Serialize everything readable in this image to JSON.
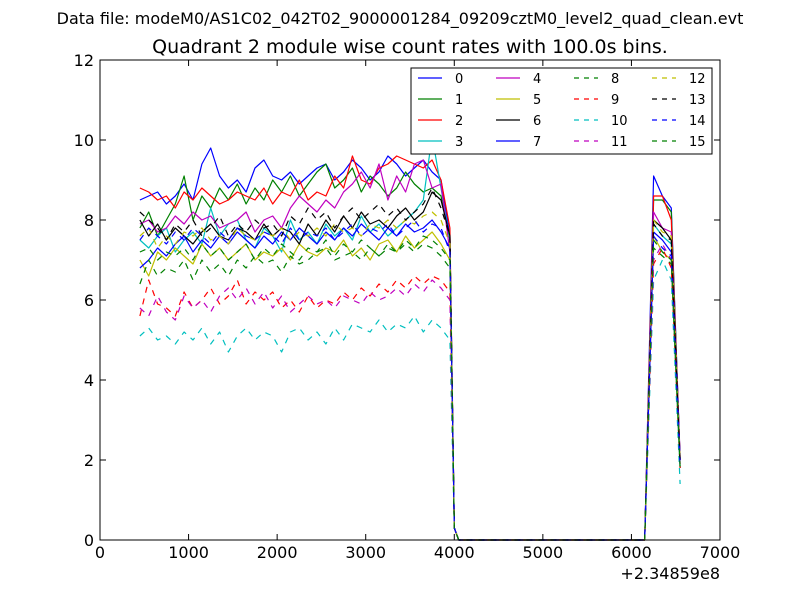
{
  "chart_data": {
    "type": "line",
    "suptitle": "Data file: modeM0/AS1C02_042T02_9000001284_09209cztM0_level2_quad_clean.evt",
    "title": "Quadrant 2 module wise count rates with 100.0s bins.",
    "xlabel": "",
    "ylabel": "",
    "x_offset_label": "+2.34859e8",
    "xlim": [
      0,
      7000
    ],
    "ylim": [
      0,
      12
    ],
    "x_ticks": [
      0,
      1000,
      2000,
      3000,
      4000,
      5000,
      6000,
      7000
    ],
    "y_ticks": [
      0,
      2,
      4,
      6,
      8,
      10,
      12
    ],
    "grid": false,
    "legend": {
      "placement": "top-right",
      "columns": 4
    },
    "x": [
      450,
      550,
      650,
      750,
      850,
      950,
      1050,
      1150,
      1250,
      1350,
      1450,
      1550,
      1650,
      1750,
      1850,
      1950,
      2050,
      2150,
      2250,
      2350,
      2450,
      2550,
      2650,
      2750,
      2850,
      2950,
      3050,
      3150,
      3250,
      3350,
      3450,
      3550,
      3650,
      3750,
      3850,
      3950,
      4000,
      4050,
      6150,
      6250,
      6350,
      6450,
      6550
    ],
    "series": [
      {
        "name": "0",
        "color": "#0000ff",
        "dash": "solid",
        "values": [
          8.5,
          8.6,
          8.7,
          8.4,
          8.6,
          8.9,
          8.5,
          9.4,
          9.8,
          9.1,
          8.8,
          9.0,
          8.7,
          9.3,
          9.5,
          9.1,
          9.0,
          9.2,
          8.9,
          9.1,
          9.3,
          9.4,
          9.0,
          9.2,
          9.5,
          9.3,
          9.0,
          9.2,
          9.6,
          9.4,
          9.1,
          9.3,
          9.5,
          9.2,
          9.0,
          7.6,
          0.3,
          0.0,
          0.0,
          9.1,
          8.6,
          8.3,
          2.0
        ]
      },
      {
        "name": "1",
        "color": "#008000",
        "dash": "solid",
        "values": [
          7.8,
          8.2,
          7.6,
          8.0,
          8.4,
          9.1,
          8.0,
          8.6,
          8.3,
          8.8,
          8.5,
          8.9,
          8.4,
          8.8,
          8.5,
          9.0,
          8.7,
          9.1,
          8.6,
          8.9,
          9.2,
          9.4,
          8.8,
          9.0,
          9.3,
          8.7,
          9.1,
          8.9,
          8.6,
          8.8,
          9.2,
          8.9,
          8.7,
          8.8,
          8.6,
          7.5,
          0.3,
          0.0,
          0.0,
          8.5,
          8.5,
          8.2,
          2.0
        ]
      },
      {
        "name": "2",
        "color": "#ff0000",
        "dash": "solid",
        "values": [
          8.8,
          8.7,
          8.5,
          8.6,
          8.3,
          8.7,
          8.5,
          8.8,
          8.6,
          8.4,
          8.5,
          8.7,
          8.6,
          8.5,
          8.8,
          8.4,
          8.7,
          8.6,
          9.0,
          8.5,
          8.7,
          8.6,
          9.1,
          8.8,
          9.6,
          9.0,
          8.9,
          9.3,
          9.4,
          9.6,
          9.5,
          9.4,
          9.3,
          9.5,
          9.0,
          7.8,
          0.3,
          0.0,
          0.0,
          8.6,
          8.6,
          8.0,
          2.0
        ]
      },
      {
        "name": "3",
        "color": "#00bfbf",
        "dash": "solid",
        "values": [
          7.5,
          7.3,
          7.6,
          7.8,
          7.2,
          7.5,
          7.7,
          7.4,
          8.3,
          7.6,
          7.9,
          8.0,
          7.5,
          7.3,
          7.8,
          7.6,
          7.2,
          8.0,
          7.5,
          7.7,
          7.4,
          7.9,
          7.6,
          7.8,
          7.5,
          8.1,
          7.7,
          7.9,
          7.6,
          7.8,
          8.0,
          8.2,
          8.5,
          10.1,
          8.8,
          7.5,
          0.3,
          0.0,
          0.0,
          7.9,
          7.6,
          7.4,
          1.8
        ]
      },
      {
        "name": "4",
        "color": "#bf00bf",
        "dash": "solid",
        "values": [
          7.9,
          8.0,
          7.7,
          7.8,
          8.1,
          7.9,
          8.2,
          8.0,
          8.1,
          7.8,
          7.9,
          8.0,
          8.2,
          7.7,
          8.0,
          8.1,
          7.8,
          8.3,
          8.6,
          8.4,
          8.2,
          8.5,
          8.3,
          8.7,
          8.9,
          9.2,
          8.8,
          9.4,
          8.5,
          9.1,
          8.7,
          9.4,
          9.5,
          8.8,
          8.9,
          7.2,
          0.3,
          0.0,
          0.0,
          8.2,
          7.8,
          7.7,
          2.1
        ]
      },
      {
        "name": "5",
        "color": "#bfbf00",
        "dash": "solid",
        "values": [
          7.0,
          6.6,
          7.2,
          7.0,
          7.3,
          7.1,
          6.9,
          7.4,
          7.1,
          7.3,
          7.0,
          7.2,
          7.4,
          7.0,
          7.2,
          7.1,
          7.3,
          7.0,
          7.4,
          7.2,
          7.1,
          7.3,
          7.2,
          7.5,
          7.1,
          7.3,
          7.0,
          7.4,
          7.5,
          7.2,
          7.6,
          7.3,
          7.5,
          7.7,
          7.4,
          7.0,
          0.3,
          0.0,
          0.0,
          7.6,
          7.2,
          7.0,
          1.9
        ]
      },
      {
        "name": "6",
        "color": "#000000",
        "dash": "solid",
        "values": [
          8.0,
          7.6,
          7.9,
          7.5,
          7.8,
          7.6,
          7.4,
          7.7,
          7.9,
          7.6,
          7.5,
          7.8,
          7.7,
          7.5,
          7.9,
          7.6,
          7.8,
          7.7,
          7.4,
          7.9,
          7.6,
          8.0,
          7.7,
          8.1,
          7.8,
          8.2,
          7.9,
          8.0,
          7.8,
          8.1,
          8.3,
          8.0,
          8.2,
          8.7,
          8.5,
          7.6,
          0.3,
          0.0,
          0.0,
          8.0,
          7.8,
          7.5,
          2.0
        ]
      },
      {
        "name": "7",
        "color": "#0000ff",
        "dash": "solid",
        "values": [
          6.8,
          7.0,
          7.3,
          7.1,
          7.4,
          7.6,
          7.2,
          7.5,
          7.3,
          7.6,
          7.4,
          7.7,
          7.5,
          7.3,
          7.6,
          7.4,
          7.7,
          7.5,
          7.8,
          7.6,
          7.4,
          7.7,
          7.5,
          7.8,
          7.6,
          7.9,
          7.7,
          7.5,
          7.8,
          7.6,
          7.9,
          7.7,
          7.8,
          8.0,
          7.7,
          7.3,
          0.3,
          0.0,
          0.0,
          7.7,
          7.5,
          7.2,
          2.0
        ]
      },
      {
        "name": "8",
        "color": "#008000",
        "dash": "dashed",
        "values": [
          6.4,
          7.0,
          6.6,
          6.8,
          6.7,
          7.0,
          6.5,
          7.0,
          6.7,
          6.9,
          6.6,
          7.0,
          6.8,
          7.1,
          6.9,
          7.0,
          6.7,
          7.1,
          6.9,
          7.0,
          7.2,
          7.3,
          7.0,
          7.1,
          7.2,
          7.0,
          7.3,
          7.1,
          7.3,
          7.2,
          7.4,
          7.2,
          7.4,
          7.3,
          7.1,
          6.8,
          0.3,
          0.0,
          0.0,
          7.3,
          7.1,
          6.9,
          1.8
        ]
      },
      {
        "name": "9",
        "color": "#ff0000",
        "dash": "dashed",
        "values": [
          5.6,
          6.5,
          5.9,
          5.8,
          5.6,
          6.2,
          5.8,
          6.0,
          6.3,
          5.9,
          6.1,
          6.5,
          5.9,
          6.2,
          6.0,
          6.2,
          5.8,
          6.0,
          5.7,
          6.1,
          5.8,
          6.0,
          5.9,
          6.2,
          6.0,
          6.3,
          6.1,
          6.4,
          6.2,
          6.5,
          6.3,
          6.6,
          6.4,
          6.6,
          6.5,
          6.2,
          0.3,
          0.0,
          0.0,
          6.9,
          7.3,
          6.8,
          1.8
        ]
      },
      {
        "name": "10",
        "color": "#00bfbf",
        "dash": "dashed",
        "values": [
          5.1,
          5.3,
          5.0,
          5.1,
          4.9,
          5.2,
          5.0,
          5.3,
          4.9,
          5.2,
          4.7,
          5.1,
          5.3,
          5.0,
          5.2,
          5.1,
          4.7,
          5.2,
          5.3,
          5.0,
          5.2,
          4.9,
          5.3,
          5.0,
          5.4,
          5.3,
          5.2,
          5.5,
          5.2,
          5.4,
          5.3,
          5.6,
          5.2,
          5.5,
          5.3,
          5.0,
          0.3,
          0.0,
          0.0,
          6.5,
          7.0,
          6.5,
          1.4
        ]
      },
      {
        "name": "11",
        "color": "#bf00bf",
        "dash": "dashed",
        "values": [
          5.8,
          5.6,
          6.1,
          5.7,
          5.5,
          6.1,
          5.8,
          6.0,
          5.7,
          6.1,
          6.3,
          6.0,
          6.3,
          5.9,
          6.2,
          5.8,
          6.1,
          5.7,
          5.9,
          6.1,
          5.9,
          6.0,
          5.8,
          6.1,
          6.0,
          5.9,
          6.2,
          6.0,
          6.1,
          6.3,
          6.1,
          6.4,
          6.2,
          6.5,
          6.3,
          6.0,
          0.3,
          0.0,
          0.0,
          7.0,
          7.4,
          7.0,
          1.9
        ]
      },
      {
        "name": "12",
        "color": "#bfbf00",
        "dash": "dashed",
        "values": [
          7.6,
          7.8,
          7.3,
          7.6,
          7.4,
          7.7,
          7.6,
          7.8,
          7.5,
          7.6,
          7.4,
          7.8,
          7.6,
          7.5,
          7.7,
          7.6,
          7.8,
          7.5,
          7.7,
          7.6,
          7.8,
          7.6,
          7.9,
          7.7,
          7.8,
          7.6,
          7.9,
          7.8,
          8.0,
          7.8,
          8.0,
          7.9,
          8.1,
          8.2,
          8.0,
          7.4,
          0.3,
          0.0,
          0.0,
          8.0,
          7.7,
          7.6,
          2.0
        ]
      },
      {
        "name": "13",
        "color": "#000000",
        "dash": "dashed",
        "values": [
          8.2,
          8.0,
          7.8,
          7.5,
          7.9,
          7.7,
          8.0,
          7.6,
          7.8,
          8.1,
          7.6,
          7.9,
          7.7,
          8.0,
          7.8,
          7.9,
          7.6,
          8.1,
          7.9,
          8.3,
          8.0,
          8.2,
          7.8,
          8.1,
          8.3,
          8.0,
          8.2,
          8.4,
          8.1,
          8.3,
          8.0,
          8.2,
          8.4,
          8.8,
          8.3,
          7.6,
          0.3,
          0.0,
          0.0,
          7.9,
          7.6,
          7.5,
          1.9
        ]
      },
      {
        "name": "14",
        "color": "#0000ff",
        "dash": "dashed",
        "values": [
          7.5,
          7.8,
          7.6,
          7.4,
          7.7,
          7.5,
          7.8,
          7.6,
          7.4,
          7.7,
          7.5,
          7.8,
          7.6,
          7.5,
          7.7,
          7.6,
          7.4,
          7.8,
          7.5,
          7.7,
          7.6,
          7.8,
          7.5,
          7.7,
          7.9,
          7.6,
          7.8,
          7.7,
          7.9,
          7.6,
          7.8,
          8.0,
          7.7,
          7.9,
          7.8,
          7.2,
          0.3,
          0.0,
          0.0,
          7.6,
          7.3,
          7.1,
          1.8
        ]
      },
      {
        "name": "15",
        "color": "#008000",
        "dash": "dashed",
        "values": [
          7.2,
          7.3,
          7.0,
          7.2,
          7.1,
          7.3,
          7.0,
          7.4,
          7.1,
          7.3,
          7.0,
          7.2,
          7.4,
          7.0,
          7.3,
          7.1,
          7.4,
          7.2,
          7.0,
          7.3,
          7.2,
          7.5,
          7.1,
          7.4,
          7.2,
          7.5,
          7.3,
          7.1,
          7.4,
          7.2,
          7.5,
          7.3,
          7.6,
          7.5,
          7.3,
          7.0,
          0.3,
          0.0,
          0.0,
          7.5,
          7.2,
          7.0,
          1.8
        ]
      }
    ]
  }
}
